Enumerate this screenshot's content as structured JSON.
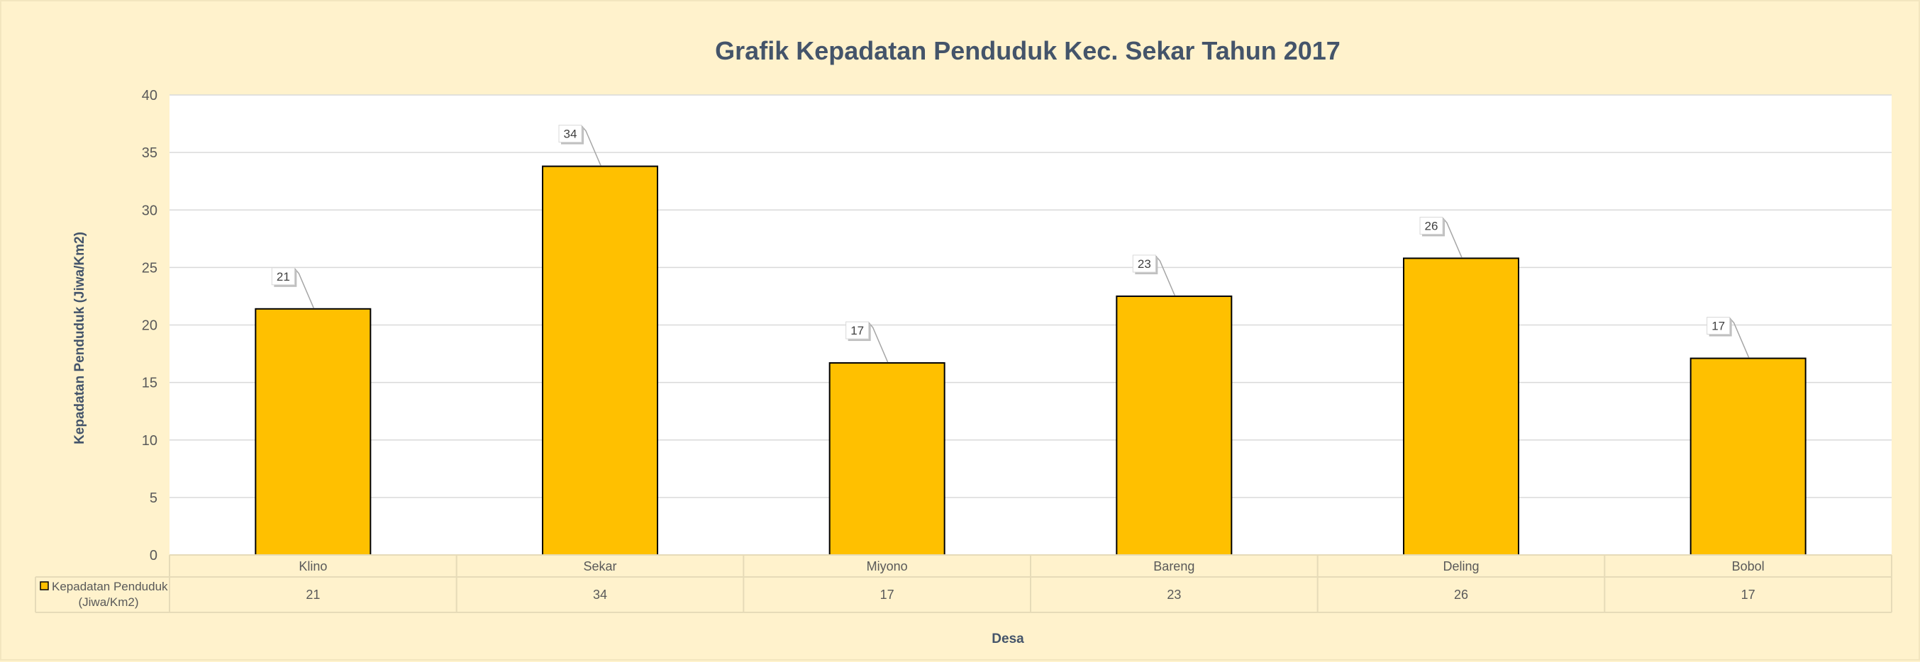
{
  "chart_data": {
    "type": "bar",
    "title": "Grafik Kepadatan Penduduk Kec. Sekar Tahun 2017",
    "xlabel": "Desa",
    "ylabel": "Kepadatan Penduduk (Jiwa/Km2)",
    "ylim": [
      0,
      40
    ],
    "yticks": [
      0,
      5,
      10,
      15,
      20,
      25,
      30,
      35,
      40
    ],
    "grid": true,
    "categories": [
      "Klino",
      "Sekar",
      "Miyono",
      "Bareng",
      "Deling",
      "Bobol"
    ],
    "series": [
      {
        "name": "Kepadatan Penduduk (Jiwa/Km2)",
        "legend_lines": [
          "Kepadatan Penduduk",
          "(Jiwa/Km2)"
        ],
        "values": [
          21.4,
          33.8,
          16.7,
          22.5,
          25.8,
          17.1
        ],
        "table_values": [
          "21",
          "34",
          "17",
          "23",
          "26",
          "17"
        ],
        "data_labels": [
          "21",
          "34",
          "17",
          "23",
          "26",
          "17"
        ],
        "color": "#ffc000"
      }
    ],
    "colors": {
      "background": "#fff2cc",
      "plot_background": "#ffffff",
      "bar_fill": "#ffc000",
      "bar_stroke": "#000000",
      "gridline": "#d9d9d9",
      "text": "#595959",
      "title": "#44546a"
    },
    "legend": "data-table"
  }
}
